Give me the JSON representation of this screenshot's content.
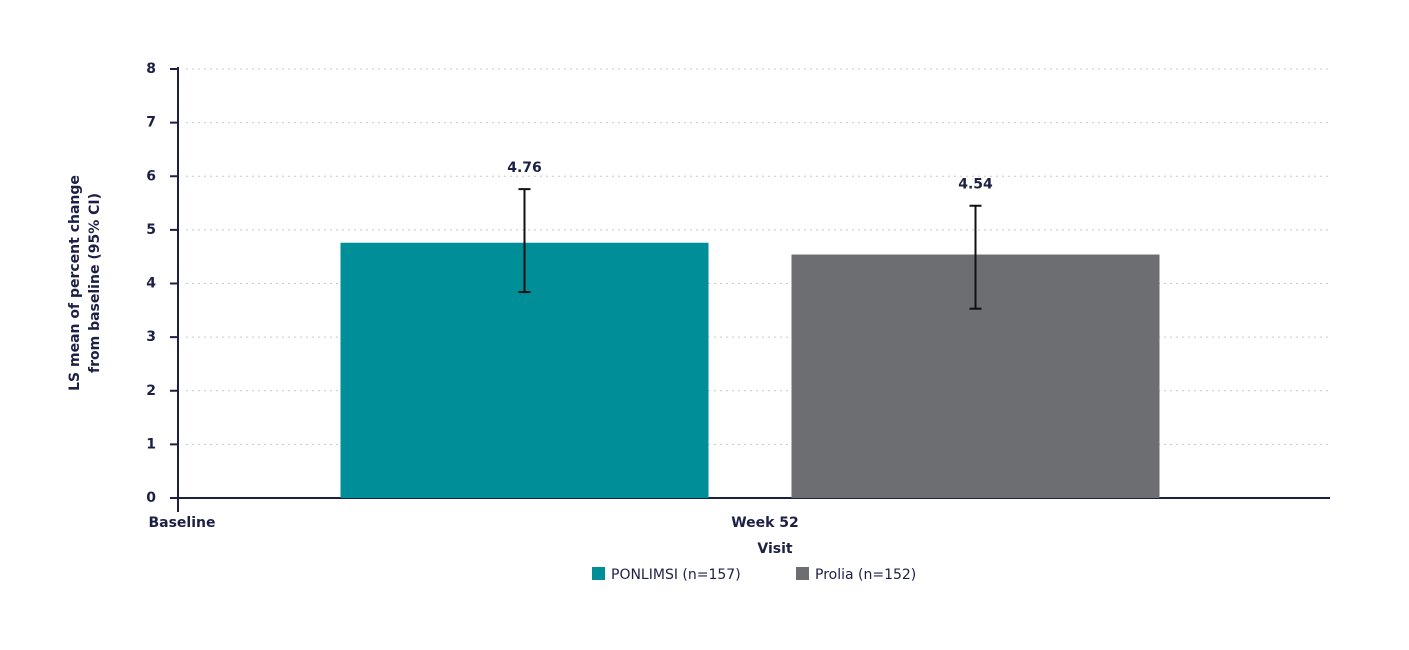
{
  "chart_data": {
    "type": "bar",
    "ylabel": [
      "LS mean of percent change",
      "from baseline (95% CI)"
    ],
    "xlabel": "Visit",
    "categories": [
      "Baseline",
      "Week 52"
    ],
    "series": [
      {
        "name": "PONLIMSI (n=157)",
        "color": "#008f99",
        "values": [
          null,
          4.76
        ],
        "ci_lower": [
          null,
          3.84
        ],
        "ci_upper": [
          null,
          5.76
        ]
      },
      {
        "name": "Prolia (n=152)",
        "color": "#6d6e71",
        "values": [
          null,
          4.54
        ],
        "ci_lower": [
          null,
          3.53
        ],
        "ci_upper": [
          null,
          5.45
        ]
      }
    ],
    "ylim": [
      0,
      8
    ],
    "yticks": [
      0,
      1,
      2,
      3,
      4,
      5,
      6,
      7,
      8
    ],
    "grid": true,
    "legend": "bottom"
  }
}
